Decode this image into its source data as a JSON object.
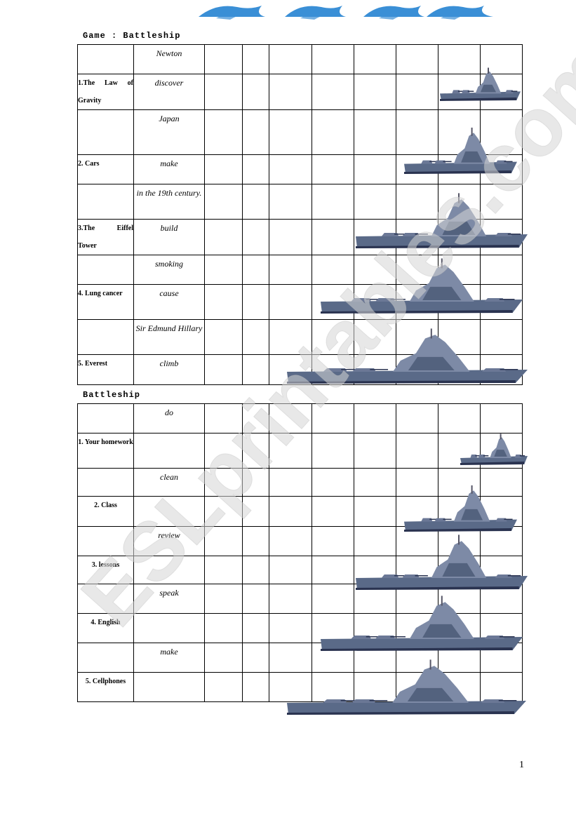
{
  "game1": {
    "title": "Game  : Battleship",
    "rows": [
      {
        "label": "",
        "word": "Newton"
      },
      {
        "label": "1.The Law of Gravity",
        "word": "discover"
      },
      {
        "label": "",
        "word": "Japan"
      },
      {
        "label": "2. Cars",
        "word": "make"
      },
      {
        "label": "",
        "word": "in the 19th century."
      },
      {
        "label": "3.The Eiffel Tower",
        "word": "build"
      },
      {
        "label": "",
        "word": "smoking"
      },
      {
        "label": "4. Lung cancer",
        "word": "cause"
      },
      {
        "label": "",
        "word": "Sir Edmund Hillary"
      },
      {
        "label": "5. Everest",
        "word": "climb"
      }
    ]
  },
  "game2": {
    "title": "Battleship",
    "rows": [
      {
        "label": "",
        "word": "do"
      },
      {
        "label": "1. Your homework",
        "word": ""
      },
      {
        "label": "",
        "word": "clean"
      },
      {
        "label": "2. Class",
        "word": ""
      },
      {
        "label": "",
        "word": "review"
      },
      {
        "label": "3. lessons",
        "word": ""
      },
      {
        "label": "",
        "word": "speak"
      },
      {
        "label": "4. English",
        "word": ""
      },
      {
        "label": "",
        "word": "make"
      },
      {
        "label": "5. Cellphones",
        "word": ""
      }
    ]
  },
  "watermark": "ESLprintables.com",
  "page_number": "1",
  "colors": {
    "wave": "#3a8fd6",
    "ship_hull": "#5a6a88",
    "ship_dark": "#2a3350",
    "watermark": "#e0e0e0"
  }
}
